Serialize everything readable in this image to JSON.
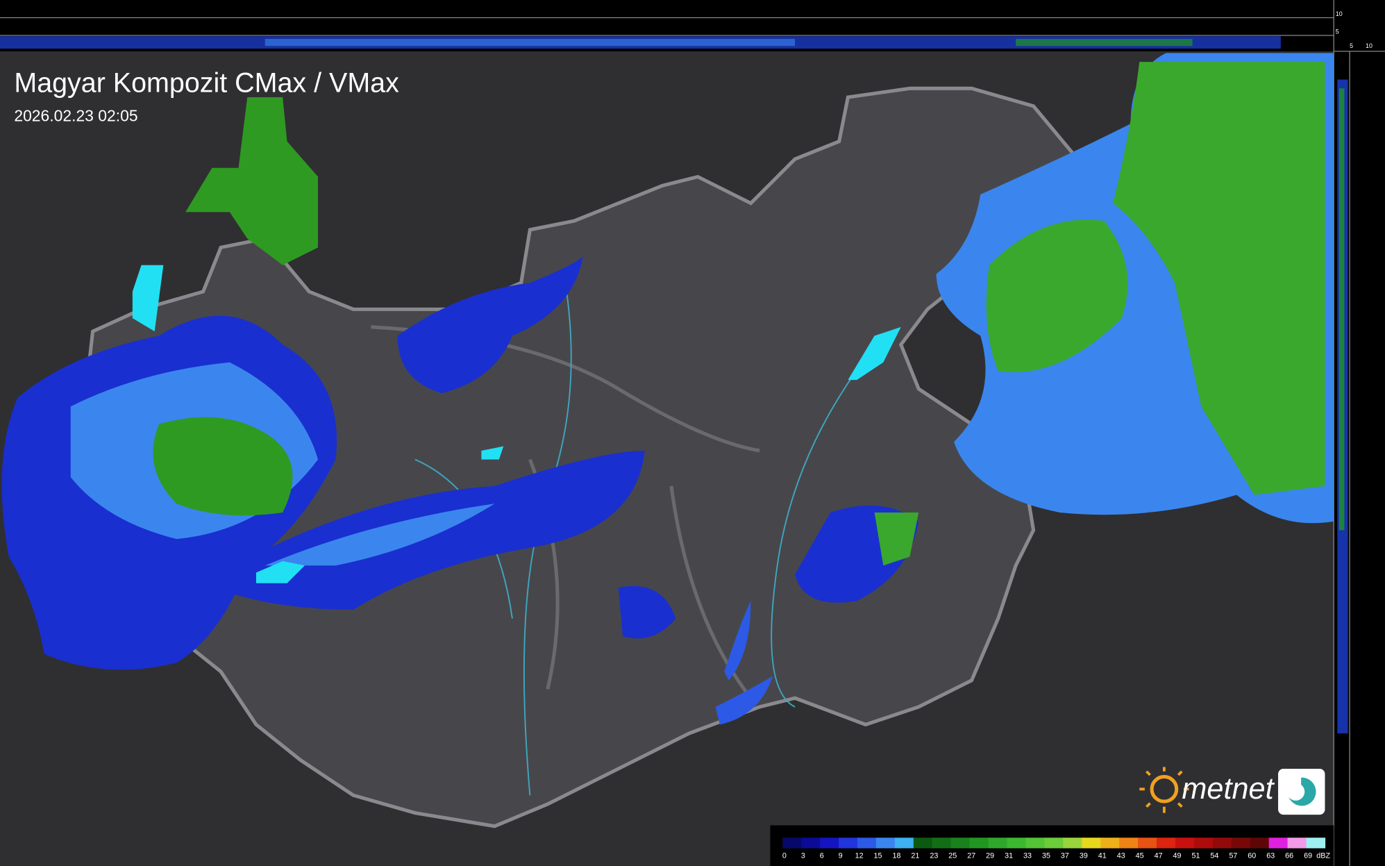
{
  "header": {
    "title": "Magyar Kompozit CMax / VMax",
    "timestamp": "2026.02.23 02:05"
  },
  "profile": {
    "top_labels": [
      "10",
      "5"
    ],
    "side_labels": [
      "5",
      "10"
    ]
  },
  "logo": {
    "text": "metnet"
  },
  "legend": {
    "unit": "dBZ",
    "items": [
      {
        "value": 0,
        "color": "#08086a"
      },
      {
        "value": 3,
        "color": "#0b0b96"
      },
      {
        "value": 6,
        "color": "#1414c0"
      },
      {
        "value": 9,
        "color": "#2234dc"
      },
      {
        "value": 12,
        "color": "#2c5ae6"
      },
      {
        "value": 15,
        "color": "#3a86ee"
      },
      {
        "value": 18,
        "color": "#3fb0f2"
      },
      {
        "value": 21,
        "color": "#0c5a10"
      },
      {
        "value": 23,
        "color": "#126e16"
      },
      {
        "value": 25,
        "color": "#1a821c"
      },
      {
        "value": 27,
        "color": "#229622"
      },
      {
        "value": 29,
        "color": "#2ea82a"
      },
      {
        "value": 31,
        "color": "#3cb830"
      },
      {
        "value": 33,
        "color": "#52c436"
      },
      {
        "value": 35,
        "color": "#6ccc3a"
      },
      {
        "value": 37,
        "color": "#9ad43c"
      },
      {
        "value": 39,
        "color": "#e6d81e"
      },
      {
        "value": 41,
        "color": "#eeb01a"
      },
      {
        "value": 43,
        "color": "#ee8416"
      },
      {
        "value": 45,
        "color": "#e85212"
      },
      {
        "value": 47,
        "color": "#dc2410"
      },
      {
        "value": 49,
        "color": "#c8100e"
      },
      {
        "value": 51,
        "color": "#ae0c0c"
      },
      {
        "value": 54,
        "color": "#920a0a"
      },
      {
        "value": 57,
        "color": "#780808"
      },
      {
        "value": 60,
        "color": "#5e0606"
      },
      {
        "value": 63,
        "color": "#e020e0"
      },
      {
        "value": 66,
        "color": "#f29ae6"
      },
      {
        "value": 69,
        "color": "#9ef0f0"
      }
    ]
  }
}
